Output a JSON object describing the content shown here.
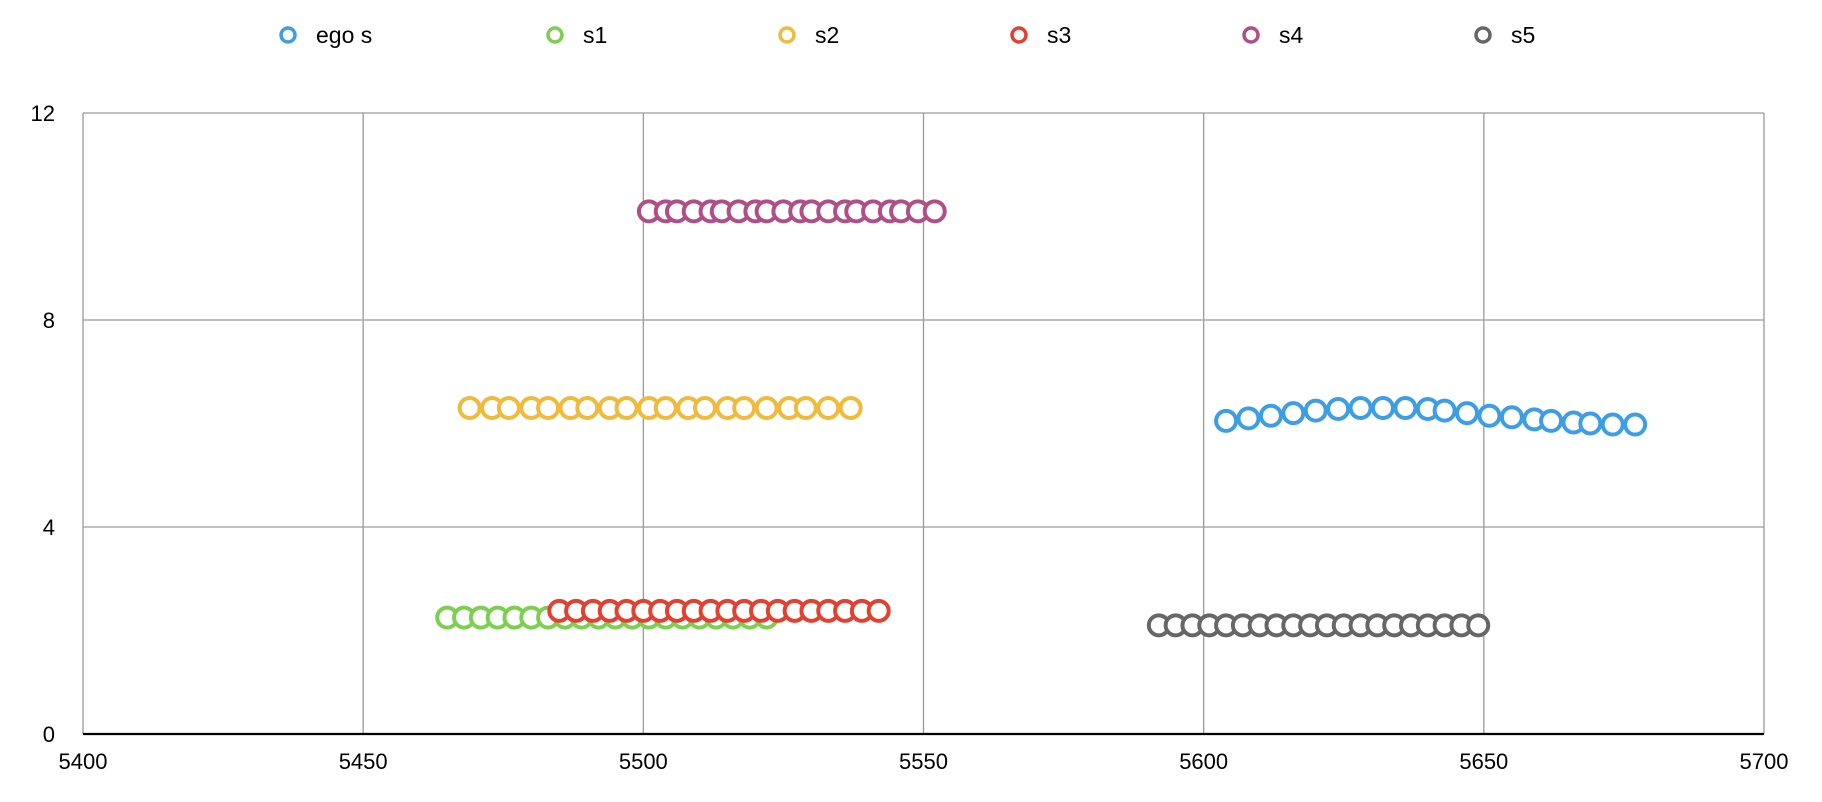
{
  "chart_data": {
    "type": "scatter",
    "title": "",
    "xlabel": "",
    "ylabel": "",
    "xlim": [
      5400,
      5700
    ],
    "ylim": [
      0,
      12
    ],
    "x_ticks": [
      5400,
      5450,
      5500,
      5550,
      5600,
      5650,
      5700
    ],
    "y_ticks": [
      0,
      4,
      8,
      12
    ],
    "x_tick_labels": [
      "5400",
      "5450",
      "5500",
      "5550",
      "5600",
      "5650",
      "5700"
    ],
    "y_tick_labels": [
      "0",
      "4",
      "8",
      "12"
    ],
    "grid": true,
    "legend_position": "top",
    "marker": "hollow-circle",
    "series": [
      {
        "name": "ego s",
        "color": "#3d9ee6",
        "points": [
          [
            5604,
            6.05
          ],
          [
            5608,
            6.1
          ],
          [
            5612,
            6.15
          ],
          [
            5616,
            6.2
          ],
          [
            5620,
            6.25
          ],
          [
            5624,
            6.28
          ],
          [
            5628,
            6.3
          ],
          [
            5632,
            6.3
          ],
          [
            5636,
            6.3
          ],
          [
            5640,
            6.28
          ],
          [
            5643,
            6.25
          ],
          [
            5647,
            6.2
          ],
          [
            5651,
            6.15
          ],
          [
            5655,
            6.12
          ],
          [
            5659,
            6.08
          ],
          [
            5662,
            6.05
          ],
          [
            5666,
            6.02
          ],
          [
            5669,
            6.0
          ],
          [
            5673,
            5.98
          ],
          [
            5677,
            5.98
          ]
        ]
      },
      {
        "name": "s1",
        "color": "#7ccf4f",
        "points": [
          [
            5465,
            2.25
          ],
          [
            5468,
            2.25
          ],
          [
            5471,
            2.25
          ],
          [
            5474,
            2.25
          ],
          [
            5477,
            2.25
          ],
          [
            5480,
            2.25
          ],
          [
            5483,
            2.25
          ],
          [
            5486,
            2.25
          ],
          [
            5489,
            2.25
          ],
          [
            5492,
            2.25
          ],
          [
            5495,
            2.25
          ],
          [
            5498,
            2.25
          ],
          [
            5501,
            2.25
          ],
          [
            5504,
            2.25
          ],
          [
            5507,
            2.25
          ],
          [
            5510,
            2.25
          ],
          [
            5513,
            2.25
          ],
          [
            5516,
            2.25
          ],
          [
            5519,
            2.25
          ],
          [
            5522,
            2.25
          ]
        ]
      },
      {
        "name": "s2",
        "color": "#f0bb3c",
        "points": [
          [
            5469,
            6.3
          ],
          [
            5473,
            6.3
          ],
          [
            5476,
            6.3
          ],
          [
            5480,
            6.3
          ],
          [
            5483,
            6.3
          ],
          [
            5487,
            6.3
          ],
          [
            5490,
            6.3
          ],
          [
            5494,
            6.3
          ],
          [
            5497,
            6.3
          ],
          [
            5501,
            6.3
          ],
          [
            5504,
            6.3
          ],
          [
            5508,
            6.3
          ],
          [
            5511,
            6.3
          ],
          [
            5515,
            6.3
          ],
          [
            5518,
            6.3
          ],
          [
            5522,
            6.3
          ],
          [
            5526,
            6.3
          ],
          [
            5529,
            6.3
          ],
          [
            5533,
            6.3
          ],
          [
            5537,
            6.3
          ]
        ]
      },
      {
        "name": "s3",
        "color": "#e3402f",
        "points": [
          [
            5485,
            2.38
          ],
          [
            5488,
            2.38
          ],
          [
            5491,
            2.38
          ],
          [
            5494,
            2.38
          ],
          [
            5497,
            2.38
          ],
          [
            5500,
            2.38
          ],
          [
            5503,
            2.38
          ],
          [
            5506,
            2.38
          ],
          [
            5509,
            2.38
          ],
          [
            5512,
            2.38
          ],
          [
            5515,
            2.38
          ],
          [
            5518,
            2.38
          ],
          [
            5521,
            2.38
          ],
          [
            5524,
            2.38
          ],
          [
            5527,
            2.38
          ],
          [
            5530,
            2.38
          ],
          [
            5533,
            2.38
          ],
          [
            5536,
            2.38
          ],
          [
            5539,
            2.38
          ],
          [
            5542,
            2.38
          ]
        ]
      },
      {
        "name": "s4",
        "color": "#b04f87",
        "points": [
          [
            5501,
            10.1
          ],
          [
            5504,
            10.1
          ],
          [
            5506,
            10.1
          ],
          [
            5509,
            10.1
          ],
          [
            5512,
            10.1
          ],
          [
            5514,
            10.1
          ],
          [
            5517,
            10.1
          ],
          [
            5520,
            10.1
          ],
          [
            5522,
            10.1
          ],
          [
            5525,
            10.1
          ],
          [
            5528,
            10.1
          ],
          [
            5530,
            10.1
          ],
          [
            5533,
            10.1
          ],
          [
            5536,
            10.1
          ],
          [
            5538,
            10.1
          ],
          [
            5541,
            10.1
          ],
          [
            5544,
            10.1
          ],
          [
            5546,
            10.1
          ],
          [
            5549,
            10.1
          ],
          [
            5552,
            10.1
          ]
        ]
      },
      {
        "name": "s5",
        "color": "#666666",
        "points": [
          [
            5592,
            2.1
          ],
          [
            5595,
            2.1
          ],
          [
            5598,
            2.1
          ],
          [
            5601,
            2.1
          ],
          [
            5604,
            2.1
          ],
          [
            5607,
            2.1
          ],
          [
            5610,
            2.1
          ],
          [
            5613,
            2.1
          ],
          [
            5616,
            2.1
          ],
          [
            5619,
            2.1
          ],
          [
            5622,
            2.1
          ],
          [
            5625,
            2.1
          ],
          [
            5628,
            2.1
          ],
          [
            5631,
            2.1
          ],
          [
            5634,
            2.1
          ],
          [
            5637,
            2.1
          ],
          [
            5640,
            2.1
          ],
          [
            5643,
            2.1
          ],
          [
            5646,
            2.1
          ],
          [
            5649,
            2.1
          ]
        ]
      }
    ]
  }
}
